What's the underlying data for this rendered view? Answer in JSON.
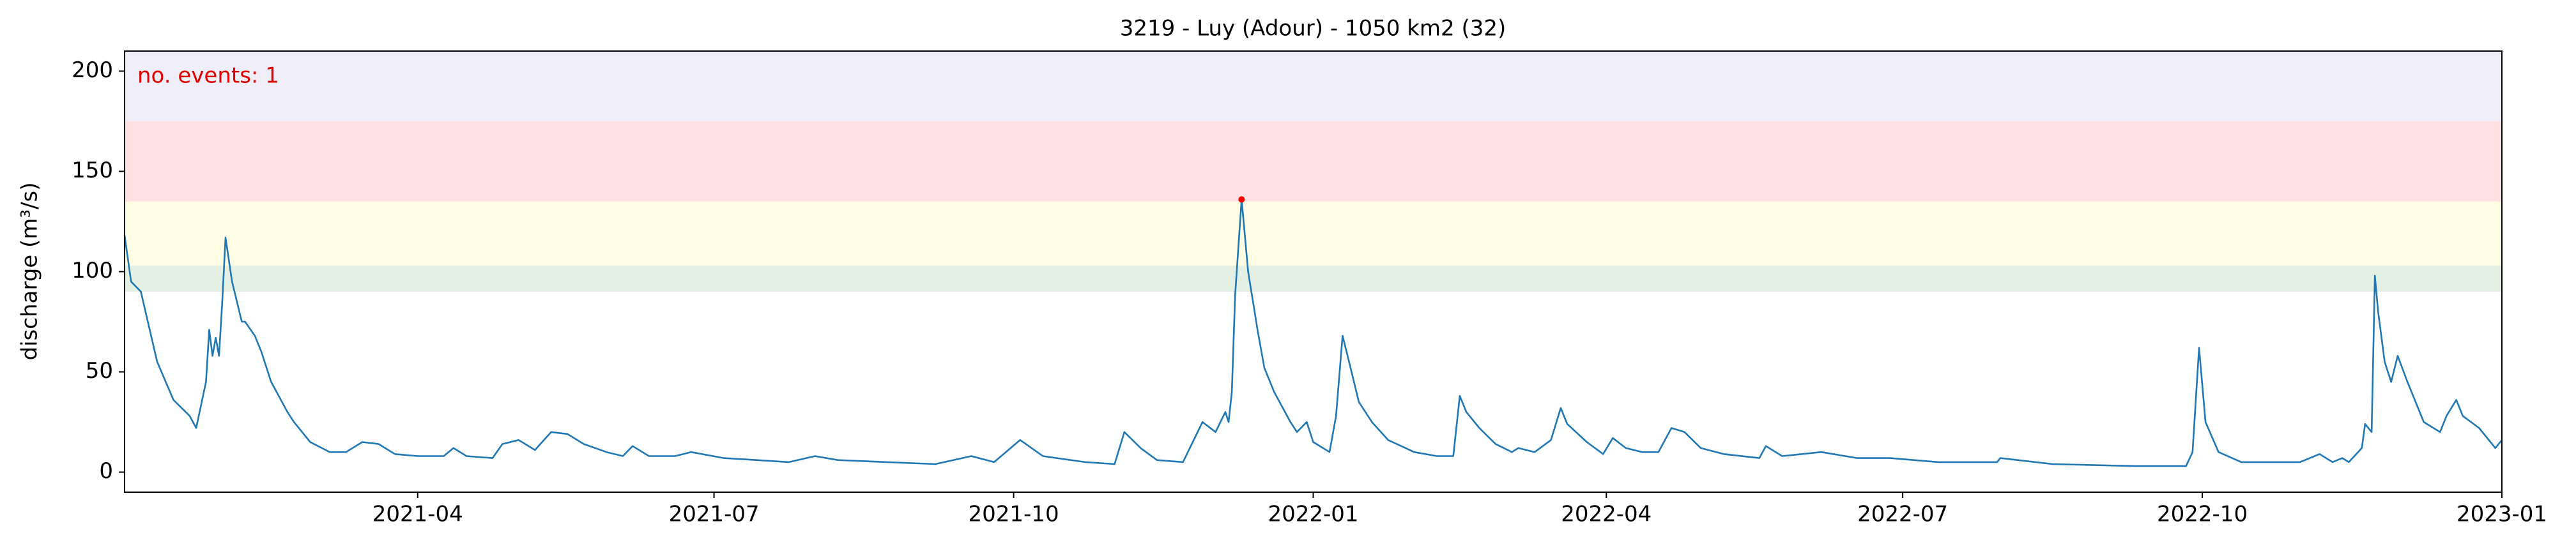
{
  "chart_data": {
    "type": "line",
    "title": "3219 - Luy (Adour) - 1050 km2 (32)",
    "y_label": "discharge (m³/s)",
    "annotation": "no. events: 1",
    "annotation_color": "#e00000",
    "xlim": [
      "2021-01-01",
      "2023-01-01"
    ],
    "xticks": [
      {
        "value": "2021-04-01",
        "label": "2021-04"
      },
      {
        "value": "2021-07-01",
        "label": "2021-07"
      },
      {
        "value": "2021-10-01",
        "label": "2021-10"
      },
      {
        "value": "2022-01-01",
        "label": "2022-01"
      },
      {
        "value": "2022-04-01",
        "label": "2022-04"
      },
      {
        "value": "2022-07-01",
        "label": "2022-07"
      },
      {
        "value": "2022-10-01",
        "label": "2022-10"
      },
      {
        "value": "2023-01-01",
        "label": "2023-01"
      }
    ],
    "ylim": [
      -10,
      210
    ],
    "yticks": [
      0,
      50,
      100,
      150,
      200
    ],
    "bands": [
      {
        "from": 90,
        "to": 103,
        "color": "#e3f0e3"
      },
      {
        "from": 103,
        "to": 135,
        "color": "#fffde3"
      },
      {
        "from": 135,
        "to": 175,
        "color": "#ffe1e4"
      },
      {
        "from": 175,
        "to": 210,
        "color": "#f0eef9"
      }
    ],
    "events": {
      "color": "#ff0000",
      "x": [
        "2021-12-10"
      ],
      "values": [
        136
      ]
    },
    "x": [
      "2021-01-01",
      "2021-01-03",
      "2021-01-06",
      "2021-01-11",
      "2021-01-16",
      "2021-01-21",
      "2021-01-23",
      "2021-01-26",
      "2021-01-27",
      "2021-01-28",
      "2021-01-29",
      "2021-01-30",
      "2021-01-31",
      "2021-02-01",
      "2021-02-03",
      "2021-02-06",
      "2021-02-07",
      "2021-02-10",
      "2021-02-12",
      "2021-02-15",
      "2021-02-20",
      "2021-02-22",
      "2021-02-27",
      "2021-03-05",
      "2021-03-10",
      "2021-03-15",
      "2021-03-20",
      "2021-03-25",
      "2021-04-01",
      "2021-04-09",
      "2021-04-12",
      "2021-04-16",
      "2021-04-24",
      "2021-04-27",
      "2021-05-02",
      "2021-05-07",
      "2021-05-12",
      "2021-05-17",
      "2021-05-22",
      "2021-05-29",
      "2021-06-03",
      "2021-06-06",
      "2021-06-11",
      "2021-06-19",
      "2021-06-24",
      "2021-07-04",
      "2021-07-14",
      "2021-07-24",
      "2021-08-01",
      "2021-08-08",
      "2021-08-23",
      "2021-09-07",
      "2021-09-18",
      "2021-09-25",
      "2021-10-03",
      "2021-10-10",
      "2021-10-23",
      "2021-11-01",
      "2021-11-04",
      "2021-11-09",
      "2021-11-14",
      "2021-11-22",
      "2021-11-28",
      "2021-12-02",
      "2021-12-05",
      "2021-12-06",
      "2021-12-07",
      "2021-12-08",
      "2021-12-10",
      "2021-12-12",
      "2021-12-15",
      "2021-12-17",
      "2021-12-20",
      "2021-12-25",
      "2021-12-27",
      "2021-12-30",
      "2022-01-01",
      "2022-01-06",
      "2022-01-08",
      "2022-01-10",
      "2022-01-12",
      "2022-01-15",
      "2022-01-19",
      "2022-01-24",
      "2022-02-01",
      "2022-02-08",
      "2022-02-13",
      "2022-02-15",
      "2022-02-17",
      "2022-02-21",
      "2022-02-26",
      "2022-03-03",
      "2022-03-05",
      "2022-03-10",
      "2022-03-15",
      "2022-03-18",
      "2022-03-20",
      "2022-03-26",
      "2022-03-31",
      "2022-04-03",
      "2022-04-07",
      "2022-04-12",
      "2022-04-17",
      "2022-04-21",
      "2022-04-25",
      "2022-04-30",
      "2022-05-07",
      "2022-05-18",
      "2022-05-20",
      "2022-05-25",
      "2022-06-06",
      "2022-06-17",
      "2022-06-27",
      "2022-07-12",
      "2022-07-30",
      "2022-07-31",
      "2022-08-16",
      "2022-09-11",
      "2022-09-26",
      "2022-09-28",
      "2022-09-30",
      "2022-10-02",
      "2022-10-06",
      "2022-10-13",
      "2022-10-31",
      "2022-11-06",
      "2022-11-10",
      "2022-11-13",
      "2022-11-15",
      "2022-11-19",
      "2022-11-20",
      "2022-11-22",
      "2022-11-23",
      "2022-11-24",
      "2022-11-26",
      "2022-11-28",
      "2022-11-30",
      "2022-12-03",
      "2022-12-08",
      "2022-12-13",
      "2022-12-15",
      "2022-12-18",
      "2022-12-20",
      "2022-12-25",
      "2022-12-30",
      "2023-01-01"
    ],
    "series": [
      {
        "name": "discharge",
        "color": "#1f77b4",
        "values": [
          118,
          95,
          90,
          55,
          36,
          28,
          22,
          45,
          71,
          58,
          67,
          58,
          85,
          117,
          95,
          75,
          75,
          68,
          60,
          45,
          30,
          25,
          15,
          10,
          10,
          15,
          14,
          9,
          8,
          8,
          12,
          8,
          7,
          14,
          16,
          11,
          20,
          19,
          14,
          10,
          8,
          13,
          8,
          8,
          10,
          7,
          6,
          5,
          8,
          6,
          5,
          4,
          8,
          5,
          16,
          8,
          5,
          4,
          20,
          12,
          6,
          5,
          25,
          20,
          30,
          25,
          40,
          88,
          136,
          100,
          70,
          52,
          40,
          25,
          20,
          25,
          15,
          10,
          28,
          68,
          55,
          35,
          25,
          16,
          10,
          8,
          8,
          38,
          30,
          22,
          14,
          10,
          12,
          10,
          16,
          32,
          24,
          15,
          9,
          17,
          12,
          10,
          10,
          22,
          20,
          12,
          9,
          7,
          13,
          8,
          10,
          7,
          7,
          5,
          5,
          7,
          4,
          3,
          3,
          10,
          62,
          25,
          10,
          5,
          5,
          9,
          5,
          7,
          5,
          12,
          24,
          20,
          98,
          80,
          55,
          45,
          58,
          45,
          25,
          20,
          28,
          36,
          28,
          22,
          12,
          16
        ]
      }
    ]
  }
}
